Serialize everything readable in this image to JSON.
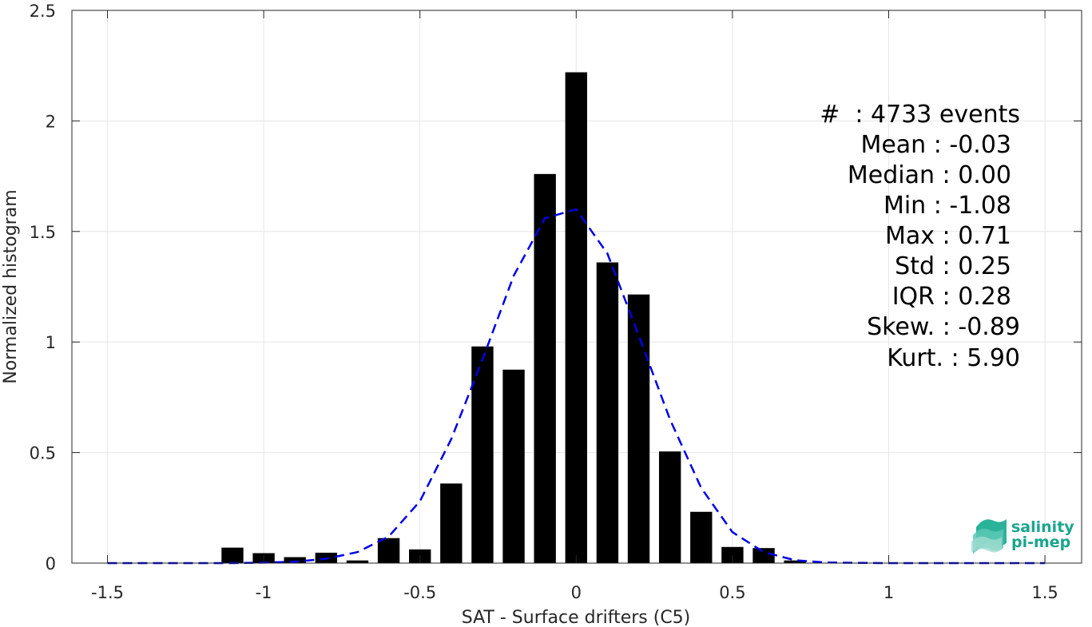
{
  "chart_data": {
    "type": "bar",
    "xlabel": "SAT - Surface drifters (C5)",
    "ylabel": "Normalized histogram",
    "xlim": [
      -1.5,
      1.5
    ],
    "ylim": [
      0,
      2.5
    ],
    "xticks": [
      -1.5,
      -1,
      -0.5,
      0,
      0.5,
      1,
      1.5
    ],
    "xtick_labels": [
      "-1.5",
      "-1",
      "-0.5",
      "0",
      "0.5",
      "1",
      "1.5"
    ],
    "yticks": [
      0,
      0.5,
      1,
      1.5,
      2,
      2.5
    ],
    "ytick_labels": [
      "0",
      "0.5",
      "1",
      "1.5",
      "2",
      "2.5"
    ],
    "grid": true,
    "bar_width": 0.07,
    "bars": {
      "x": [
        -1.1,
        -1.0,
        -0.9,
        -0.8,
        -0.7,
        -0.6,
        -0.5,
        -0.4,
        -0.3,
        -0.2,
        -0.1,
        0.0,
        0.1,
        0.2,
        0.3,
        0.4,
        0.5,
        0.6,
        0.7
      ],
      "values": [
        0.07,
        0.045,
        0.027,
        0.047,
        0.012,
        0.113,
        0.062,
        0.36,
        0.98,
        0.875,
        1.76,
        2.22,
        1.36,
        1.215,
        0.505,
        0.232,
        0.073,
        0.068,
        0.012
      ]
    },
    "fit_curve": {
      "style": "dashed",
      "x": [
        -1.5,
        -1.4,
        -1.3,
        -1.2,
        -1.1,
        -1.0,
        -0.9,
        -0.8,
        -0.7,
        -0.6,
        -0.5,
        -0.4,
        -0.3,
        -0.2,
        -0.1,
        0.0,
        0.1,
        0.2,
        0.3,
        0.4,
        0.5,
        0.6,
        0.7,
        0.8,
        0.9,
        1.0,
        1.1,
        1.2,
        1.3,
        1.4,
        1.5
      ],
      "y": [
        0.0,
        0.0,
        0.0,
        0.0,
        0.0,
        0.002,
        0.006,
        0.02,
        0.05,
        0.12,
        0.28,
        0.56,
        0.92,
        1.3,
        1.56,
        1.6,
        1.4,
        1.03,
        0.65,
        0.34,
        0.14,
        0.05,
        0.013,
        0.003,
        0.001,
        0.0,
        0.0,
        0.0,
        0.0,
        0.0,
        0.0
      ]
    },
    "colors": {
      "bars": "#000000",
      "fit": "#0000e6",
      "grid": "#e6e6e6",
      "axes": "#262626"
    }
  },
  "stats": {
    "lines": [
      "#  : 4733 events",
      "Mean : -0.03",
      "Median : 0.00",
      "Min : -1.08",
      "Max : 0.71",
      "Std : 0.25",
      "IQR : 0.28",
      "Skew. : -0.89",
      "Kurt. : 5.90"
    ]
  },
  "logo": {
    "line1": "salinity",
    "line2": "pi-mep"
  }
}
